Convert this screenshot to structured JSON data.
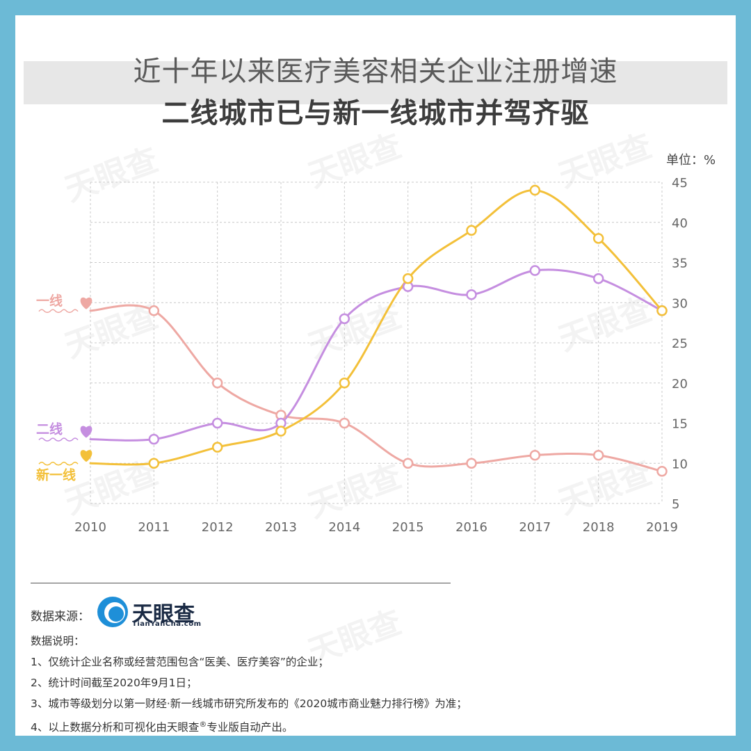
{
  "title": {
    "line1": "近十年以来医疗美容相关企业注册增速",
    "line2": "二线城市已与新一线城市并驾齐驱"
  },
  "unit_label": "单位：%",
  "colors": {
    "background_frame": "#6cbad6",
    "yi_xian": "#eea8a3",
    "er_xian": "#c58ee0",
    "xin_yi_xian": "#f3c039"
  },
  "chart_data": {
    "type": "line",
    "x": [
      "2010",
      "2011",
      "2012",
      "2013",
      "2014",
      "2015",
      "2016",
      "2017",
      "2018",
      "2019"
    ],
    "series": [
      {
        "name": "一线",
        "color": "#eea8a3",
        "values": [
          null,
          29,
          20,
          16,
          15,
          10,
          10,
          11,
          11,
          9
        ]
      },
      {
        "name": "二线",
        "color": "#c58ee0",
        "values": [
          null,
          13,
          15,
          15,
          28,
          32,
          31,
          34,
          33,
          29
        ]
      },
      {
        "name": "新一线",
        "color": "#f3c039",
        "values": [
          null,
          10,
          12,
          14,
          20,
          33,
          39,
          44,
          38,
          29
        ]
      }
    ],
    "yticks": [
      5,
      10,
      15,
      20,
      25,
      30,
      35,
      40,
      45
    ],
    "ylim": [
      5,
      45
    ],
    "y_axis_position": "right",
    "grid": true,
    "legend": "left, labels at line starts"
  },
  "footer": {
    "source_label": "数据来源：",
    "logo_text": "天眼查",
    "logo_sub": "TianYanCha.com",
    "notes_title": "数据说明：",
    "note1": "1、仅统计企业名称或经营范围包含“医美、医疗美容”的企业；",
    "note2": "2、统计时间截至2020年9月1日；",
    "note3": "3、城市等级划分以第一财经·新一线城市研究所发布的《2020城市商业魅力排行榜》为准；",
    "note4a": "4、以上数据分析和可视化由天眼查",
    "note4sup": "®",
    "note4b": "专业版自动产出。"
  },
  "watermark": "天眼查"
}
